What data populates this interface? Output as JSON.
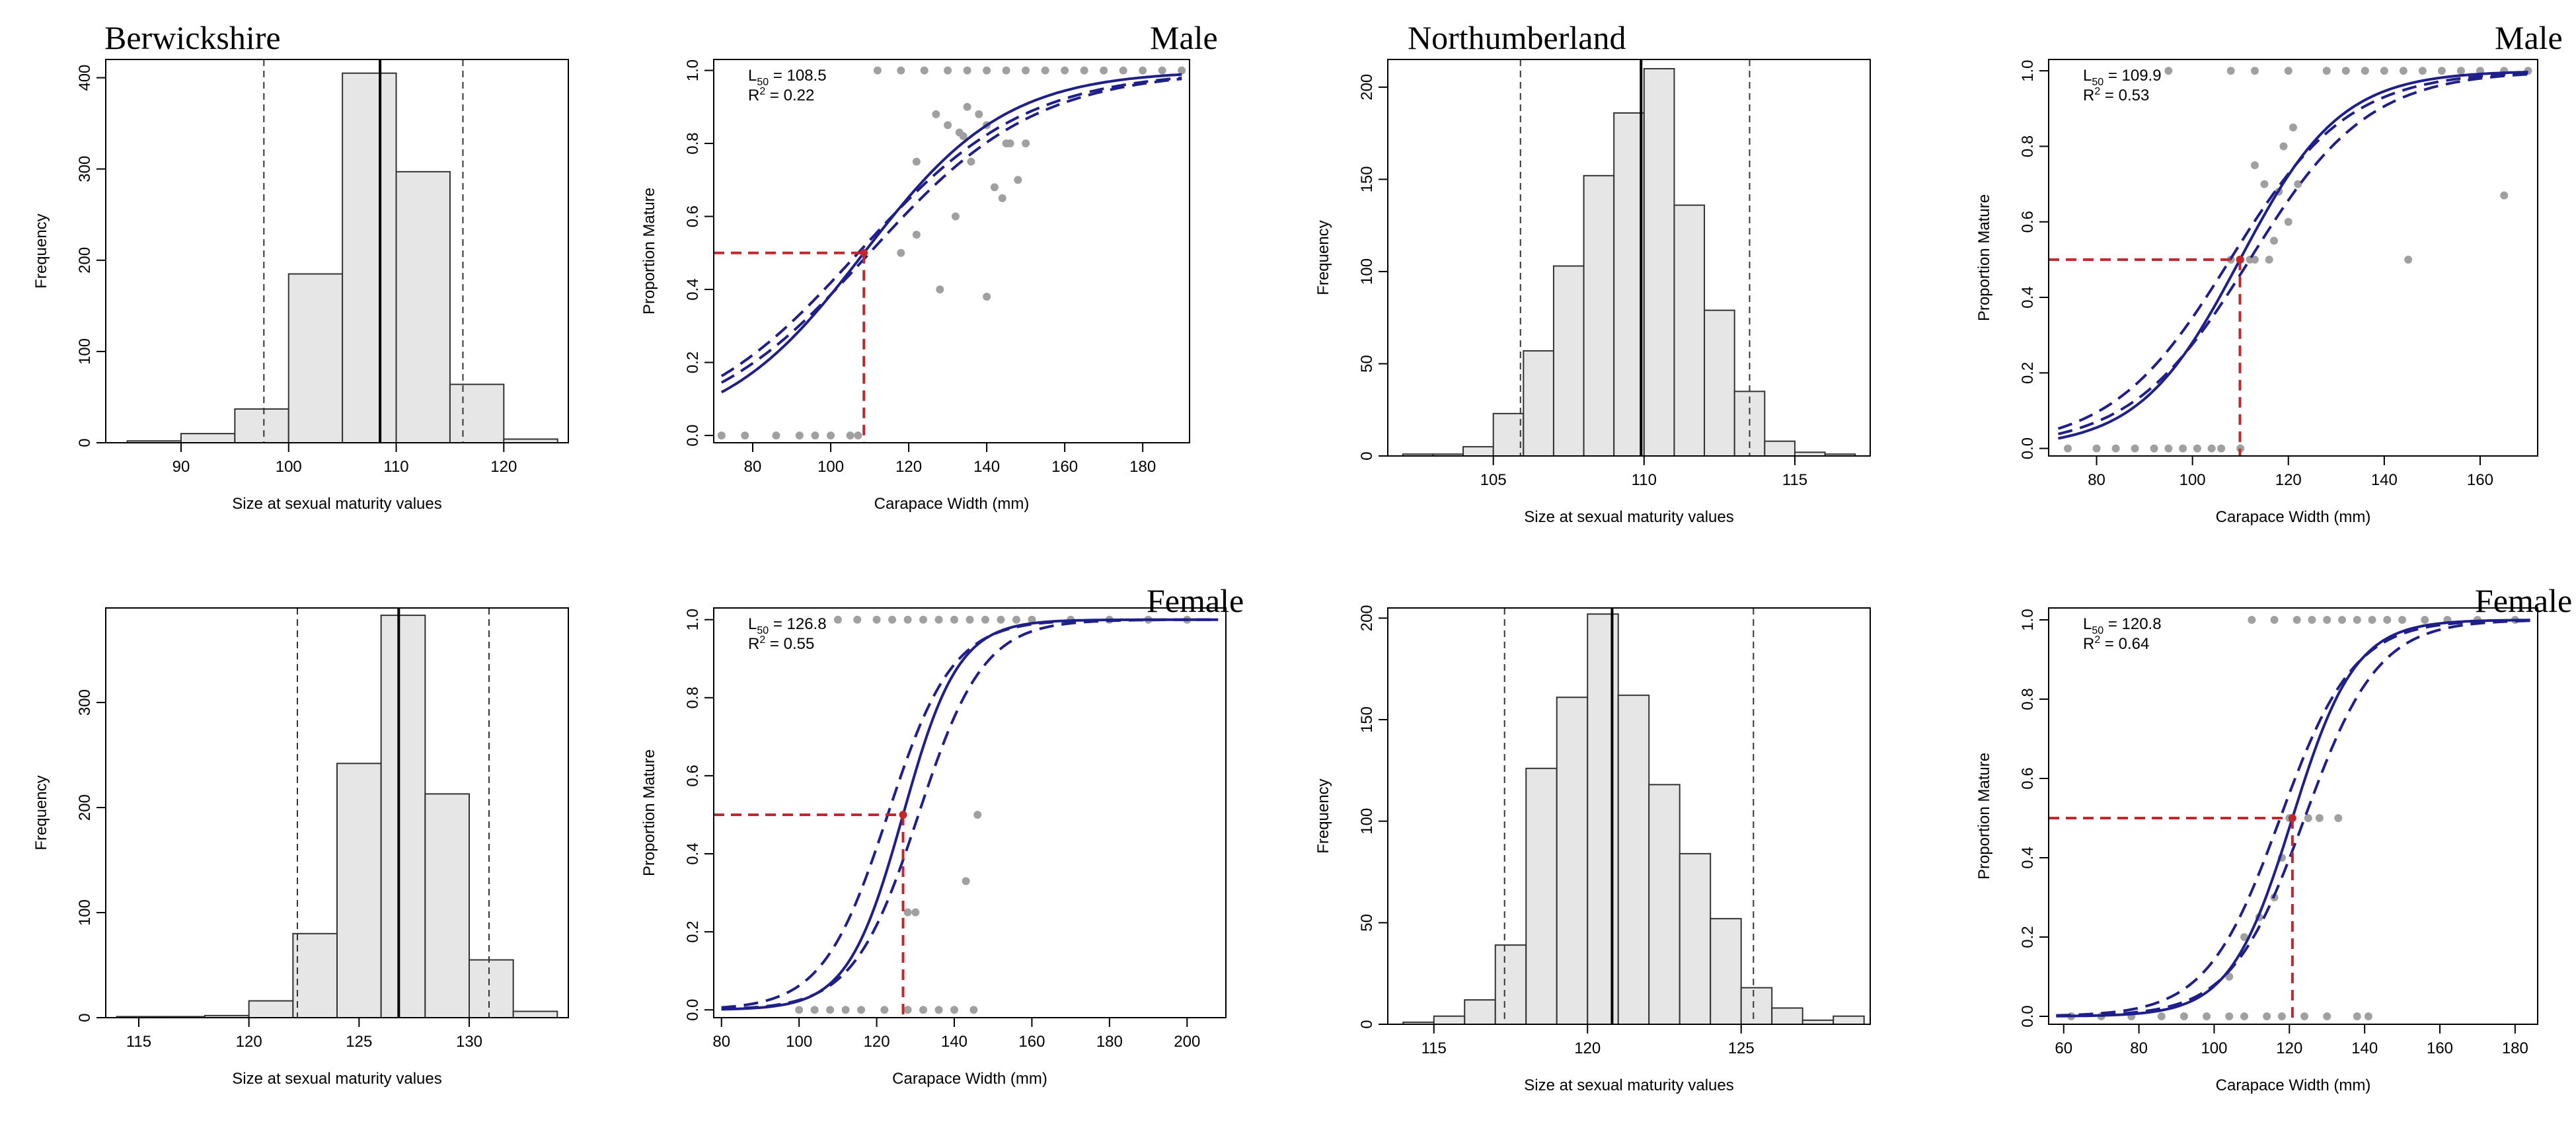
{
  "figure": {
    "regions": [
      {
        "name": "Berwickshire"
      },
      {
        "name": "Northumberland"
      }
    ],
    "sexes": [
      {
        "name": "Male"
      },
      {
        "name": "Female"
      }
    ]
  },
  "chart_data": [
    {
      "id": "berwickshire-male-hist",
      "type": "bar",
      "region": "Berwickshire",
      "sex": "Male",
      "bins": [
        [
          85,
          90
        ],
        [
          90,
          95
        ],
        [
          95,
          100
        ],
        [
          100,
          105
        ],
        [
          105,
          110
        ],
        [
          110,
          115
        ],
        [
          115,
          120
        ],
        [
          120,
          125
        ]
      ],
      "values": [
        2,
        10,
        37,
        185,
        405,
        297,
        64,
        4
      ],
      "ylim": [
        0,
        420
      ],
      "xlim": [
        83,
        126
      ],
      "xticks": [
        90,
        100,
        110,
        120
      ],
      "yticks": [
        0,
        100,
        200,
        300,
        400
      ],
      "mean": 108.5,
      "ci": [
        97.7,
        116.2
      ],
      "xlabel": "Size at sexual maturity values",
      "ylabel": "Frequency"
    },
    {
      "id": "berwickshire-male-ogive",
      "type": "line",
      "region": "Berwickshire",
      "sex": "Male",
      "title": "Male",
      "l50_label": "L",
      "l50_sub": "50",
      "l50_value": "= 108.5",
      "r2_label": "R",
      "r2_sup": "2",
      "r2_value": "= 0.22",
      "l50": 108.5,
      "slope": 0.055,
      "ci_width": 0.012,
      "xlim": [
        70,
        192
      ],
      "ylim": [
        -0.02,
        1.03
      ],
      "xticks": [
        80,
        100,
        120,
        140,
        160,
        180
      ],
      "yticks": [
        0.0,
        0.2,
        0.4,
        0.6,
        0.8,
        1.0
      ],
      "points_x": [
        72,
        78,
        86,
        92,
        96,
        100,
        105,
        107,
        118,
        122,
        128,
        132,
        136,
        140,
        144,
        148,
        150,
        122,
        127,
        133,
        135,
        140,
        145,
        130,
        134,
        138,
        142,
        146,
        112,
        118,
        124,
        130,
        135,
        140,
        145,
        150,
        155,
        160,
        165,
        170,
        175,
        180,
        185,
        190
      ],
      "points_y": [
        0,
        0,
        0,
        0,
        0,
        0,
        0,
        0,
        0.5,
        0.55,
        0.4,
        0.6,
        0.75,
        0.38,
        0.65,
        0.7,
        0.8,
        0.75,
        0.88,
        0.83,
        0.9,
        0.85,
        0.8,
        0.85,
        0.82,
        0.88,
        0.68,
        0.8,
        1,
        1,
        1,
        1,
        1,
        1,
        1,
        1,
        1,
        1,
        1,
        1,
        1,
        1,
        1,
        1
      ],
      "xlabel": "Carapace Width (mm)",
      "ylabel": "Proportion Mature"
    },
    {
      "id": "northumberland-male-hist",
      "type": "bar",
      "region": "Northumberland",
      "sex": "Male",
      "bins": [
        [
          102,
          103
        ],
        [
          103,
          104
        ],
        [
          104,
          105
        ],
        [
          105,
          106
        ],
        [
          106,
          107
        ],
        [
          107,
          108
        ],
        [
          108,
          109
        ],
        [
          109,
          110
        ],
        [
          110,
          111
        ],
        [
          111,
          112
        ],
        [
          112,
          113
        ],
        [
          113,
          114
        ],
        [
          114,
          115
        ],
        [
          115,
          116
        ],
        [
          116,
          117
        ]
      ],
      "values": [
        1,
        1,
        5,
        23,
        57,
        103,
        152,
        186,
        210,
        136,
        79,
        35,
        8,
        2,
        1
      ],
      "ylim": [
        0,
        215
      ],
      "xlim": [
        101.5,
        117.5
      ],
      "xticks": [
        105,
        110,
        115
      ],
      "yticks": [
        0,
        50,
        100,
        150,
        200
      ],
      "mean": 109.9,
      "ci": [
        105.9,
        113.5
      ],
      "xlabel": "Size at sexual maturity values",
      "ylabel": "Frequency"
    },
    {
      "id": "northumberland-male-ogive",
      "type": "line",
      "region": "Northumberland",
      "sex": "Male",
      "title": "Male",
      "l50_label": "L",
      "l50_sub": "50",
      "l50_value": "= 109.9",
      "r2_label": "R",
      "r2_sup": "2",
      "r2_value": "= 0.53",
      "l50": 109.9,
      "slope": 0.095,
      "ci_width": 0.02,
      "xlim": [
        70,
        172
      ],
      "ylim": [
        -0.02,
        1.03
      ],
      "xticks": [
        80,
        100,
        120,
        140,
        160
      ],
      "yticks": [
        0.0,
        0.2,
        0.4,
        0.6,
        0.8,
        1.0
      ],
      "points_x": [
        74,
        80,
        84,
        88,
        92,
        95,
        98,
        101,
        104,
        106,
        110,
        112,
        113,
        115,
        118,
        120,
        122,
        108,
        117,
        119,
        121,
        110,
        113,
        116,
        145,
        165,
        95,
        108,
        113,
        120,
        128,
        132,
        136,
        140,
        144,
        148,
        152,
        156,
        160,
        165,
        170
      ],
      "points_y": [
        0,
        0,
        0,
        0,
        0,
        0,
        0,
        0,
        0,
        0,
        0,
        0.5,
        0.75,
        0.7,
        0.68,
        0.6,
        0.7,
        0.5,
        0.55,
        0.8,
        0.85,
        0.5,
        0.5,
        0.5,
        0.5,
        0.67,
        1,
        1,
        1,
        1,
        1,
        1,
        1,
        1,
        1,
        1,
        1,
        1,
        1,
        1,
        1
      ],
      "xlabel": "Carapace Width (mm)",
      "ylabel": "Proportion Mature"
    },
    {
      "id": "berwickshire-female-hist",
      "type": "bar",
      "region": "Berwickshire",
      "sex": "Female",
      "bins": [
        [
          114,
          116
        ],
        [
          116,
          118
        ],
        [
          118,
          120
        ],
        [
          120,
          122
        ],
        [
          122,
          124
        ],
        [
          124,
          126
        ],
        [
          126,
          128
        ],
        [
          128,
          130
        ],
        [
          130,
          132
        ],
        [
          132,
          134
        ]
      ],
      "values": [
        1,
        1,
        2,
        16,
        80,
        242,
        383,
        213,
        55,
        6
      ],
      "ylim": [
        0,
        390
      ],
      "xlim": [
        113.5,
        134.5
      ],
      "xticks": [
        115,
        120,
        125,
        130
      ],
      "yticks": [
        0,
        100,
        200,
        300
      ],
      "mean": 126.8,
      "ci": [
        122.2,
        130.9
      ],
      "xlabel": "Size at sexual maturity values",
      "ylabel": "Frequency"
    },
    {
      "id": "berwickshire-female-ogive",
      "type": "line",
      "region": "Berwickshire",
      "sex": "Female",
      "title": "Female",
      "l50_label": "L",
      "l50_sub": "50",
      "l50_value": "= 126.8",
      "r2_label": "R",
      "r2_sup": "2",
      "r2_value": "= 0.55",
      "l50": 126.8,
      "slope": 0.14,
      "ci_width": 0.03,
      "xlim": [
        78,
        210
      ],
      "ylim": [
        -0.02,
        1.03
      ],
      "xticks": [
        80,
        100,
        120,
        140,
        160,
        180,
        200
      ],
      "yticks": [
        0.0,
        0.2,
        0.4,
        0.6,
        0.8,
        1.0
      ],
      "points_x": [
        100,
        104,
        108,
        112,
        116,
        122,
        128,
        132,
        136,
        140,
        145,
        128,
        130,
        143,
        146,
        110,
        115,
        120,
        124,
        128,
        132,
        136,
        140,
        144,
        148,
        152,
        156,
        160,
        170,
        180,
        190,
        200
      ],
      "points_y": [
        0,
        0,
        0,
        0,
        0,
        0,
        0,
        0,
        0,
        0,
        0,
        0.25,
        0.25,
        0.33,
        0.5,
        1,
        1,
        1,
        1,
        1,
        1,
        1,
        1,
        1,
        1,
        1,
        1,
        1,
        1,
        1,
        1,
        1
      ],
      "xlabel": "Carapace Width (mm)",
      "ylabel": "Proportion Mature"
    },
    {
      "id": "northumberland-female-hist",
      "type": "bar",
      "region": "Northumberland",
      "sex": "Female",
      "bins": [
        [
          114,
          115
        ],
        [
          115,
          116
        ],
        [
          116,
          117
        ],
        [
          117,
          118
        ],
        [
          118,
          119
        ],
        [
          119,
          120
        ],
        [
          120,
          121
        ],
        [
          121,
          122
        ],
        [
          122,
          123
        ],
        [
          123,
          124
        ],
        [
          124,
          125
        ],
        [
          125,
          126
        ],
        [
          126,
          127
        ],
        [
          127,
          128
        ],
        [
          128,
          129
        ]
      ],
      "values": [
        1,
        4,
        12,
        39,
        126,
        161,
        202,
        162,
        118,
        84,
        52,
        18,
        8,
        2,
        4
      ],
      "ylim": [
        0,
        205
      ],
      "xlim": [
        113.5,
        129.2
      ],
      "xticks": [
        115,
        120,
        125
      ],
      "yticks": [
        0,
        50,
        100,
        150,
        200
      ],
      "mean": 120.8,
      "ci": [
        117.3,
        125.4
      ],
      "xlabel": "Size at sexual maturity values",
      "ylabel": "Frequency"
    },
    {
      "id": "northumberland-female-ogive",
      "type": "line",
      "region": "Northumberland",
      "sex": "Female",
      "title": "Female",
      "l50_label": "L",
      "l50_sub": "50",
      "l50_value": "= 120.8",
      "r2_label": "R",
      "r2_sup": "2",
      "r2_value": "= 0.64",
      "l50": 120.8,
      "slope": 0.12,
      "ci_width": 0.025,
      "xlim": [
        56,
        186
      ],
      "ylim": [
        -0.02,
        1.03
      ],
      "xticks": [
        60,
        80,
        100,
        120,
        140,
        160,
        180
      ],
      "yticks": [
        0.0,
        0.2,
        0.4,
        0.6,
        0.8,
        1.0
      ],
      "points_x": [
        62,
        70,
        78,
        86,
        92,
        98,
        104,
        108,
        114,
        118,
        124,
        130,
        138,
        141,
        104,
        108,
        112,
        116,
        118,
        120,
        125,
        128,
        133,
        110,
        116,
        122,
        126,
        130,
        134,
        138,
        142,
        146,
        150,
        156,
        162,
        170,
        180
      ],
      "points_y": [
        0,
        0,
        0,
        0,
        0,
        0,
        0,
        0,
        0,
        0,
        0,
        0,
        0,
        0,
        0.1,
        0.2,
        0.25,
        0.3,
        0.4,
        0.5,
        0.5,
        0.5,
        0.5,
        1,
        1,
        1,
        1,
        1,
        1,
        1,
        1,
        1,
        1,
        1,
        1,
        1,
        1
      ],
      "xlabel": "Carapace Width (mm)",
      "ylabel": "Proportion Mature"
    }
  ]
}
